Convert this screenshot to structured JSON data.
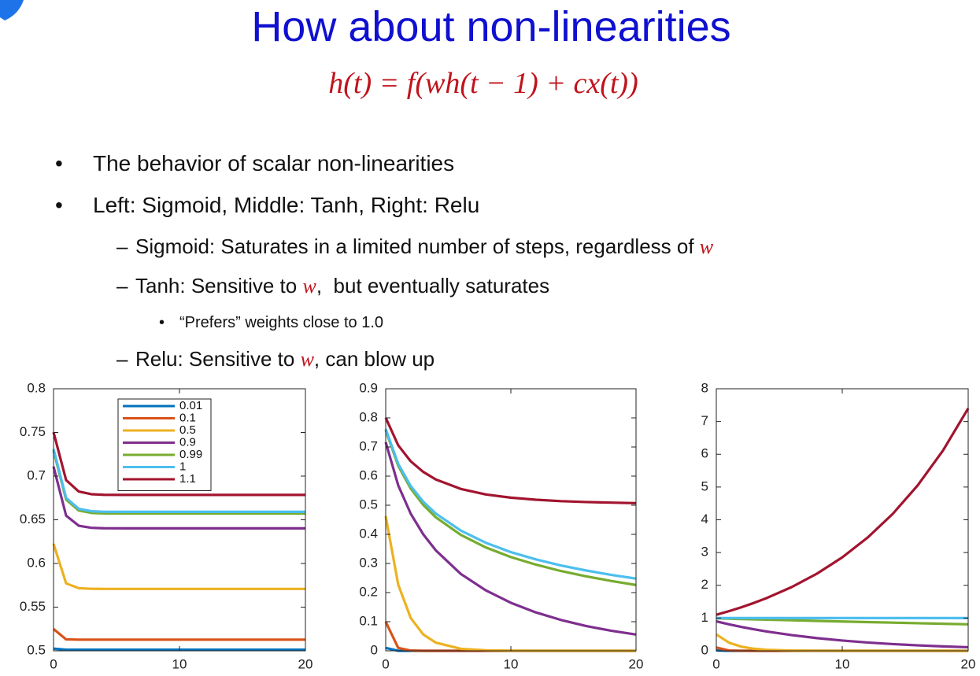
{
  "slide": {
    "title": "How about non-linearities",
    "formula": "h(t) = f(wh(t − 1) + cx(t))",
    "bullets": [
      {
        "level": 1,
        "runs": [
          {
            "text": "The behavior of scalar non-linearities"
          }
        ]
      },
      {
        "level": 1,
        "runs": [
          {
            "text": "Left: Sigmoid, Middle: Tanh, Right: Relu"
          }
        ]
      },
      {
        "level": 2,
        "runs": [
          {
            "text": "Sigmoid: Saturates in a limited number of steps, regardless of "
          },
          {
            "text": "w",
            "math": true
          }
        ]
      },
      {
        "level": 2,
        "runs": [
          {
            "text": "Tanh: Sensitive to "
          },
          {
            "text": "w",
            "math": true
          },
          {
            "text": ",  but eventually saturates"
          }
        ]
      },
      {
        "level": 3,
        "runs": [
          {
            "text": "“Prefers” weights close to 1.0"
          }
        ]
      },
      {
        "level": 2,
        "runs": [
          {
            "text": "Relu: Sensitive to "
          },
          {
            "text": "w",
            "math": true
          },
          {
            "text": ", can blow up"
          }
        ]
      }
    ]
  },
  "chart_data": [
    {
      "type": "line",
      "x": [
        0,
        1,
        2,
        3,
        4,
        6,
        8,
        10,
        12,
        14,
        16,
        18,
        20
      ],
      "xlim": [
        0,
        20
      ],
      "xticks": [
        0,
        10,
        20
      ],
      "ylim": [
        0.5,
        0.8
      ],
      "yticks": [
        0.5,
        0.55,
        0.6,
        0.65,
        0.7,
        0.75,
        0.8
      ],
      "legend": "upper center",
      "series": [
        {
          "name": "0.01",
          "color": "#0072bd",
          "values": [
            0.5025,
            0.5013,
            0.5013,
            0.5013,
            0.5013,
            0.5013,
            0.5013,
            0.5013,
            0.5013,
            0.5013,
            0.5013,
            0.5013,
            0.5013
          ]
        },
        {
          "name": "0.1",
          "color": "#d95319",
          "values": [
            0.525,
            0.5131,
            0.5128,
            0.5128,
            0.5128,
            0.5128,
            0.5128,
            0.5128,
            0.5128,
            0.5128,
            0.5128,
            0.5128,
            0.5128
          ]
        },
        {
          "name": "0.5",
          "color": "#edb120",
          "values": [
            0.6225,
            0.5772,
            0.5717,
            0.571,
            0.5709,
            0.5709,
            0.5709,
            0.5709,
            0.5709,
            0.5709,
            0.5709,
            0.5709,
            0.5709
          ]
        },
        {
          "name": "0.9",
          "color": "#7e2f8e",
          "values": [
            0.7109,
            0.6547,
            0.6432,
            0.6408,
            0.6403,
            0.6402,
            0.6402,
            0.6402,
            0.6402,
            0.6402,
            0.6402,
            0.6402,
            0.6402
          ]
        },
        {
          "name": "0.99",
          "color": "#77ac30",
          "values": [
            0.7291,
            0.673,
            0.6607,
            0.6579,
            0.6573,
            0.6572,
            0.6572,
            0.6572,
            0.6572,
            0.6572,
            0.6572,
            0.6572,
            0.6572
          ]
        },
        {
          "name": "1",
          "color": "#4dbeee",
          "values": [
            0.7311,
            0.675,
            0.6626,
            0.6598,
            0.6592,
            0.6591,
            0.6591,
            0.6591,
            0.6591,
            0.6591,
            0.6591,
            0.6591,
            0.6591
          ]
        },
        {
          "name": "1.1",
          "color": "#a2142f",
          "values": [
            0.7503,
            0.6954,
            0.6824,
            0.6793,
            0.6786,
            0.6785,
            0.6785,
            0.6785,
            0.6785,
            0.6785,
            0.6785,
            0.6785,
            0.6785
          ]
        }
      ]
    },
    {
      "type": "line",
      "x": [
        0,
        1,
        2,
        3,
        4,
        6,
        8,
        10,
        12,
        14,
        16,
        18,
        20
      ],
      "xlim": [
        0,
        20
      ],
      "xticks": [
        0,
        10,
        20
      ],
      "ylim": [
        0,
        0.9
      ],
      "yticks": [
        0,
        0.1,
        0.2,
        0.3,
        0.4,
        0.5,
        0.6,
        0.7,
        0.8,
        0.9
      ],
      "series": [
        {
          "color": "#0072bd",
          "values": [
            0.01,
            0.0001,
            0,
            0,
            0,
            0,
            0,
            0,
            0,
            0,
            0,
            0,
            0
          ]
        },
        {
          "color": "#d95319",
          "values": [
            0.0997,
            0.01,
            0.001,
            0.0001,
            0,
            0,
            0,
            0,
            0,
            0,
            0,
            0,
            0
          ]
        },
        {
          "color": "#edb120",
          "values": [
            0.4621,
            0.2271,
            0.1126,
            0.0562,
            0.0281,
            0.007,
            0.0018,
            0.0004,
            0.0001,
            0,
            0,
            0,
            0
          ]
        },
        {
          "color": "#7e2f8e",
          "values": [
            0.7163,
            0.5683,
            0.4709,
            0.4,
            0.3452,
            0.2641,
            0.2076,
            0.165,
            0.1319,
            0.106,
            0.0854,
            0.069,
            0.0558
          ]
        },
        {
          "color": "#77ac30",
          "values": [
            0.7574,
            0.6352,
            0.5573,
            0.5011,
            0.4586,
            0.398,
            0.355,
            0.322,
            0.296,
            0.274,
            0.256,
            0.24,
            0.226
          ]
        },
        {
          "color": "#4dbeee",
          "values": [
            0.7616,
            0.642,
            0.5658,
            0.5121,
            0.4714,
            0.413,
            0.371,
            0.339,
            0.314,
            0.293,
            0.276,
            0.261,
            0.248
          ]
        },
        {
          "color": "#a2142f",
          "values": [
            0.8005,
            0.7058,
            0.6508,
            0.6144,
            0.5886,
            0.556,
            0.537,
            0.526,
            0.519,
            0.514,
            0.511,
            0.509,
            0.507
          ]
        }
      ]
    },
    {
      "type": "line",
      "x": [
        0,
        1,
        2,
        3,
        4,
        6,
        8,
        10,
        12,
        14,
        16,
        18,
        20
      ],
      "xlim": [
        0,
        20
      ],
      "xticks": [
        0,
        10,
        20
      ],
      "ylim": [
        0,
        8
      ],
      "yticks": [
        0,
        1,
        2,
        3,
        4,
        5,
        6,
        7,
        8
      ],
      "series": [
        {
          "color": "#0072bd",
          "values": [
            0.01,
            0.0001,
            0,
            0,
            0,
            0,
            0,
            0,
            0,
            0,
            0,
            0,
            0
          ]
        },
        {
          "color": "#d95319",
          "values": [
            0.1,
            0.01,
            0.001,
            0.0001,
            0,
            0,
            0,
            0,
            0,
            0,
            0,
            0,
            0
          ]
        },
        {
          "color": "#edb120",
          "values": [
            0.5,
            0.25,
            0.125,
            0.0625,
            0.0313,
            0.0078,
            0.002,
            0.0005,
            0.0001,
            0,
            0,
            0,
            0
          ]
        },
        {
          "color": "#7e2f8e",
          "values": [
            0.9,
            0.81,
            0.729,
            0.6561,
            0.5905,
            0.4783,
            0.3874,
            0.3138,
            0.2542,
            0.2059,
            0.1668,
            0.1351,
            0.1094
          ]
        },
        {
          "color": "#77ac30",
          "values": [
            0.99,
            0.9801,
            0.9703,
            0.9606,
            0.951,
            0.9321,
            0.9135,
            0.8953,
            0.8775,
            0.86,
            0.8429,
            0.8262,
            0.8097
          ]
        },
        {
          "color": "#4dbeee",
          "values": [
            1,
            1,
            1,
            1,
            1,
            1,
            1,
            1,
            1,
            1,
            1,
            1,
            1
          ]
        },
        {
          "color": "#a2142f",
          "values": [
            1.1,
            1.21,
            1.331,
            1.4641,
            1.6105,
            1.9487,
            2.3579,
            2.8531,
            3.4523,
            4.1772,
            5.0545,
            6.1159,
            7.4002
          ]
        }
      ]
    }
  ]
}
